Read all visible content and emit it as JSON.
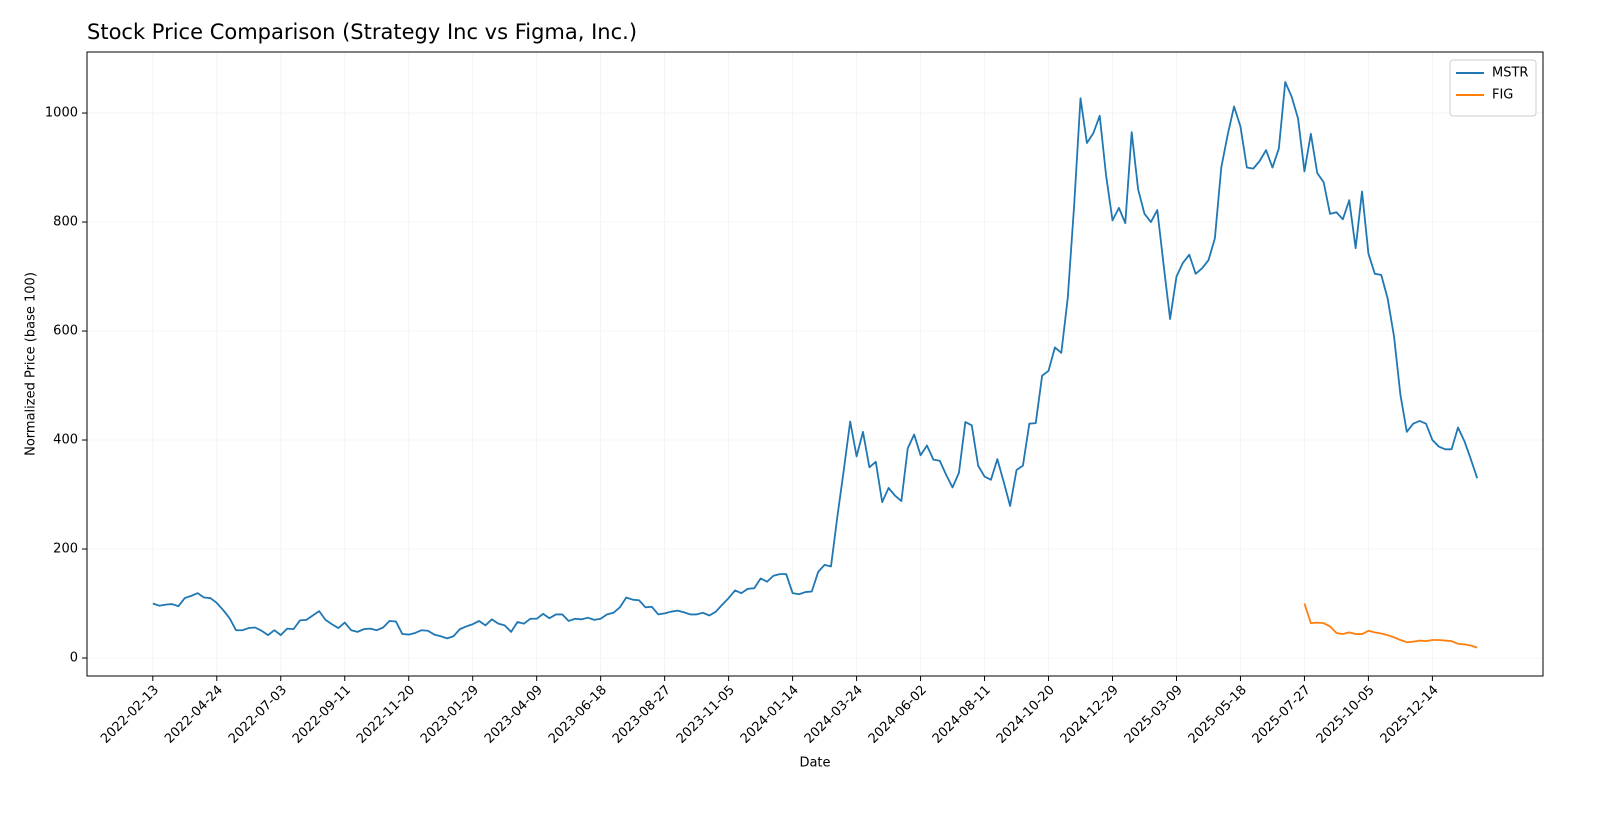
{
  "chart_data": {
    "type": "line",
    "title": "Stock Price Comparison (Strategy Inc vs Figma, Inc.)",
    "xlabel": "Date",
    "ylabel": "Normalized Price (base 100)",
    "legend": "upper right",
    "grid": true,
    "x": [
      "2022-02-13",
      "2022-02-20",
      "2022-02-27",
      "2022-03-06",
      "2022-03-13",
      "2022-03-20",
      "2022-03-27",
      "2022-04-03",
      "2022-04-10",
      "2022-04-17",
      "2022-04-24",
      "2022-05-01",
      "2022-05-08",
      "2022-05-15",
      "2022-05-22",
      "2022-05-29",
      "2022-06-05",
      "2022-06-12",
      "2022-06-19",
      "2022-06-26",
      "2022-07-03",
      "2022-07-10",
      "2022-07-17",
      "2022-07-24",
      "2022-07-31",
      "2022-08-07",
      "2022-08-14",
      "2022-08-21",
      "2022-08-28",
      "2022-09-04",
      "2022-09-11",
      "2022-09-18",
      "2022-09-25",
      "2022-10-02",
      "2022-10-09",
      "2022-10-16",
      "2022-10-23",
      "2022-10-30",
      "2022-11-06",
      "2022-11-13",
      "2022-11-20",
      "2022-11-27",
      "2022-12-04",
      "2022-12-11",
      "2022-12-18",
      "2022-12-25",
      "2023-01-01",
      "2023-01-08",
      "2023-01-15",
      "2023-01-22",
      "2023-01-29",
      "2023-02-05",
      "2023-02-12",
      "2023-02-19",
      "2023-02-26",
      "2023-03-05",
      "2023-03-12",
      "2023-03-19",
      "2023-03-26",
      "2023-04-02",
      "2023-04-09",
      "2023-04-16",
      "2023-04-23",
      "2023-04-30",
      "2023-05-07",
      "2023-05-14",
      "2023-05-21",
      "2023-05-28",
      "2023-06-04",
      "2023-06-11",
      "2023-06-18",
      "2023-06-25",
      "2023-07-02",
      "2023-07-09",
      "2023-07-16",
      "2023-07-23",
      "2023-07-30",
      "2023-08-06",
      "2023-08-13",
      "2023-08-20",
      "2023-08-27",
      "2023-09-03",
      "2023-09-10",
      "2023-09-17",
      "2023-09-24",
      "2023-10-01",
      "2023-10-08",
      "2023-10-15",
      "2023-10-22",
      "2023-10-29",
      "2023-11-05",
      "2023-11-12",
      "2023-11-19",
      "2023-11-26",
      "2023-12-03",
      "2023-12-10",
      "2023-12-17",
      "2023-12-24",
      "2023-12-31",
      "2024-01-07",
      "2024-01-14",
      "2024-01-21",
      "2024-01-28",
      "2024-02-04",
      "2024-02-11",
      "2024-02-18",
      "2024-02-25",
      "2024-03-03",
      "2024-03-10",
      "2024-03-17",
      "2024-03-24",
      "2024-03-31",
      "2024-04-07",
      "2024-04-14",
      "2024-04-21",
      "2024-04-28",
      "2024-05-05",
      "2024-05-12",
      "2024-05-19",
      "2024-05-26",
      "2024-06-02",
      "2024-06-09",
      "2024-06-16",
      "2024-06-23",
      "2024-06-30",
      "2024-07-07",
      "2024-07-14",
      "2024-07-21",
      "2024-07-28",
      "2024-08-04",
      "2024-08-11",
      "2024-08-18",
      "2024-08-25",
      "2024-09-01",
      "2024-09-08",
      "2024-09-15",
      "2024-09-22",
      "2024-09-29",
      "2024-10-06",
      "2024-10-13",
      "2024-10-20",
      "2024-10-27",
      "2024-11-03",
      "2024-11-10",
      "2024-11-17",
      "2024-11-24",
      "2024-12-01",
      "2024-12-08",
      "2024-12-15",
      "2024-12-22",
      "2024-12-29",
      "2025-01-05",
      "2025-01-12",
      "2025-01-19",
      "2025-01-26",
      "2025-02-02",
      "2025-02-09",
      "2025-02-16",
      "2025-02-23",
      "2025-03-02",
      "2025-03-09",
      "2025-03-16",
      "2025-03-23",
      "2025-03-30",
      "2025-04-06",
      "2025-04-13",
      "2025-04-20",
      "2025-04-27",
      "2025-05-04",
      "2025-05-11",
      "2025-05-18",
      "2025-05-25",
      "2025-06-01",
      "2025-06-08",
      "2025-06-15",
      "2025-06-22",
      "2025-06-29",
      "2025-07-06",
      "2025-07-13",
      "2025-07-20",
      "2025-07-27",
      "2025-08-03",
      "2025-08-10",
      "2025-08-17",
      "2025-08-24",
      "2025-08-31",
      "2025-09-07",
      "2025-09-14",
      "2025-09-21",
      "2025-09-28",
      "2025-10-05",
      "2025-10-12",
      "2025-10-19",
      "2025-10-26",
      "2025-11-02",
      "2025-11-09",
      "2025-11-16",
      "2025-11-23",
      "2025-11-30",
      "2025-12-07",
      "2025-12-14",
      "2025-12-21",
      "2025-12-28",
      "2026-01-04",
      "2026-01-11",
      "2026-01-18",
      "2026-01-25",
      "2026-02-01"
    ],
    "series": [
      {
        "name": "MSTR",
        "color": "#1f77b4",
        "values": [
          100,
          96,
          98,
          99,
          95,
          110,
          114,
          119,
          111,
          110,
          101,
          88,
          73,
          51,
          51,
          55,
          56,
          50,
          42,
          51,
          42,
          54,
          53,
          69,
          70,
          78,
          86,
          70,
          62,
          55,
          65,
          51,
          48,
          53,
          54,
          51,
          56,
          68,
          67,
          44,
          43,
          46,
          51,
          50,
          43,
          40,
          36,
          40,
          53,
          58,
          62,
          68,
          60,
          71,
          63,
          60,
          48,
          66,
          63,
          72,
          72,
          81,
          73,
          80,
          80,
          68,
          72,
          71,
          74,
          70,
          72,
          80,
          83,
          93,
          111,
          107,
          106,
          93,
          94,
          80,
          82,
          85,
          87,
          84,
          80,
          80,
          83,
          78,
          85,
          98,
          110,
          124,
          119,
          127,
          128,
          146,
          140,
          151,
          154,
          154,
          119,
          117,
          121,
          122,
          158,
          171,
          168,
          260,
          345,
          434,
          370,
          415,
          350,
          360,
          286,
          312,
          298,
          288,
          385,
          410,
          372,
          390,
          364,
          362,
          336,
          313,
          340,
          433,
          427,
          353,
          333,
          327,
          365,
          323,
          279,
          345,
          353,
          430,
          431,
          518,
          527,
          570,
          560,
          660,
          830,
          1027,
          945,
          963,
          995,
          885,
          803,
          826,
          798,
          965,
          860,
          815,
          800,
          822,
          720,
          622,
          700,
          725,
          740,
          705,
          715,
          730,
          770,
          900,
          960,
          1012,
          975,
          900,
          898,
          912,
          932,
          900,
          935,
          1057,
          1030,
          990,
          893,
          962,
          890,
          873,
          815,
          818,
          805,
          840,
          752,
          856,
          742,
          705,
          703,
          660,
          590,
          483,
          415,
          430,
          435,
          430,
          400,
          388,
          383,
          383,
          423,
          398,
          365,
          330
        ]
      },
      {
        "name": "FIG",
        "color": "#ff7f0e",
        "values": [
          null,
          null,
          null,
          null,
          null,
          null,
          null,
          null,
          null,
          null,
          null,
          null,
          null,
          null,
          null,
          null,
          null,
          null,
          null,
          null,
          null,
          null,
          null,
          null,
          null,
          null,
          null,
          null,
          null,
          null,
          null,
          null,
          null,
          null,
          null,
          null,
          null,
          null,
          null,
          null,
          null,
          null,
          null,
          null,
          null,
          null,
          null,
          null,
          null,
          null,
          null,
          null,
          null,
          null,
          null,
          null,
          null,
          null,
          null,
          null,
          null,
          null,
          null,
          null,
          null,
          null,
          null,
          null,
          null,
          null,
          null,
          null,
          null,
          null,
          null,
          null,
          null,
          null,
          null,
          null,
          null,
          null,
          null,
          null,
          null,
          null,
          null,
          null,
          null,
          null,
          null,
          null,
          null,
          null,
          null,
          null,
          null,
          null,
          null,
          null,
          null,
          null,
          null,
          null,
          null,
          null,
          null,
          null,
          null,
          null,
          null,
          null,
          null,
          null,
          null,
          null,
          null,
          null,
          null,
          null,
          null,
          null,
          null,
          null,
          null,
          null,
          null,
          null,
          null,
          null,
          null,
          null,
          null,
          null,
          null,
          null,
          null,
          null,
          null,
          null,
          null,
          null,
          null,
          null,
          null,
          null,
          null,
          null,
          null,
          null,
          null,
          null,
          null,
          null,
          null,
          null,
          null,
          null,
          null,
          null,
          null,
          null,
          null,
          null,
          null,
          null,
          null,
          null,
          null,
          null,
          null,
          null,
          null,
          null,
          null,
          null,
          null,
          null,
          null,
          null,
          100,
          64,
          65,
          64,
          58,
          46,
          44,
          47,
          44,
          44,
          50,
          47,
          45,
          42,
          38,
          33,
          29,
          30,
          32,
          31,
          33,
          33,
          32,
          31,
          26,
          25,
          23,
          19
        ]
      }
    ],
    "xlim": [
      "2021-12-03",
      "2026-04-14"
    ],
    "xticks": [
      "2022-02-13",
      "2022-04-24",
      "2022-07-03",
      "2022-09-11",
      "2022-11-20",
      "2023-01-29",
      "2023-04-09",
      "2023-06-18",
      "2023-08-27",
      "2023-11-05",
      "2024-01-14",
      "2024-03-24",
      "2024-06-02",
      "2024-08-11",
      "2024-10-20",
      "2024-12-29",
      "2025-03-09",
      "2025-05-18",
      "2025-07-27",
      "2025-10-05",
      "2025-12-14"
    ],
    "ylim": [
      -33,
      1112
    ],
    "yticks": [
      0,
      200,
      400,
      600,
      800,
      1000
    ]
  }
}
